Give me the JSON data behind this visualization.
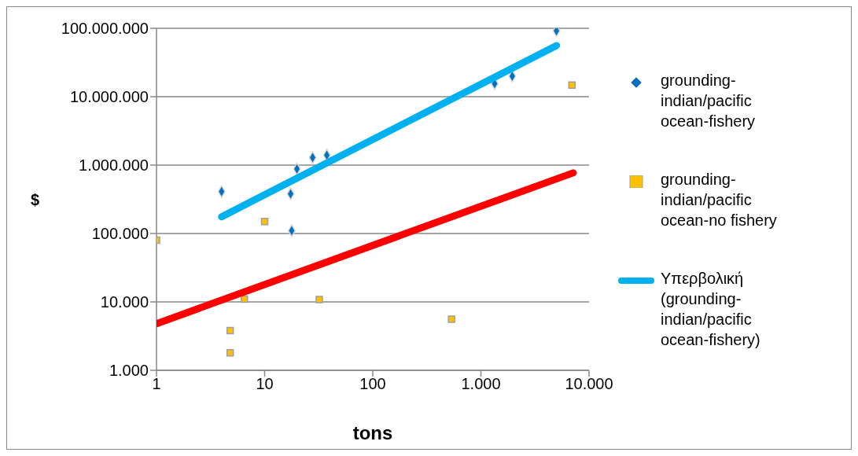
{
  "chart_data": {
    "type": "scatter",
    "xlabel": "tons",
    "ylabel": "$",
    "log": "xy",
    "grid": "y",
    "legend": "right",
    "xlim": [
      1,
      10000
    ],
    "xticks": [
      1,
      10,
      100,
      {
        "value": 1000,
        "label": "1.000"
      },
      {
        "value": 10000,
        "label": "10.000"
      }
    ],
    "ylim": [
      1000,
      100000000
    ],
    "yticks": [
      {
        "value": 1000,
        "label": "1.000"
      },
      {
        "value": 10000,
        "label": "10.000"
      },
      {
        "value": 100000,
        "label": "100.000"
      },
      {
        "value": 1000000,
        "label": "1.000.000"
      },
      {
        "value": 10000000,
        "label": "10.000.000"
      },
      {
        "value": 100000000,
        "label": "100.000.000"
      }
    ],
    "series": [
      {
        "name": "grounding-indian/pacific ocean-fishery",
        "color": "#0070c0",
        "marker": "diamond",
        "x": [
          4,
          17.4,
          17.8,
          18.4,
          19.9,
          27.8,
          37.6,
          1340,
          1950,
          5000
        ],
        "values": [
          410000,
          380000,
          110000,
          null,
          880000,
          1290000,
          1400000,
          15500000,
          20000000,
          92000000
        ]
      },
      {
        "name": "grounding-indian/pacific ocean-no fishery",
        "color": "#ffc000",
        "marker": "square",
        "x": [
          1,
          10,
          6.5,
          4.8,
          4.8,
          32,
          535,
          6950
        ],
        "values": [
          80000,
          150000,
          11000,
          3800,
          1800,
          10800,
          5600,
          14800000
        ]
      },
      {
        "name": "Υπερβολική (grounding-indian/pacific ocean-fishery)",
        "type": "line",
        "color": "#00b0f0",
        "marker": "none",
        "x": [
          4,
          5000
        ],
        "values": [
          176000,
          56000000
        ]
      },
      {
        "type": "line",
        "color": "#ff0000",
        "marker": "none",
        "x": [
          1,
          7130
        ],
        "values": [
          4800,
          770000
        ]
      }
    ]
  }
}
